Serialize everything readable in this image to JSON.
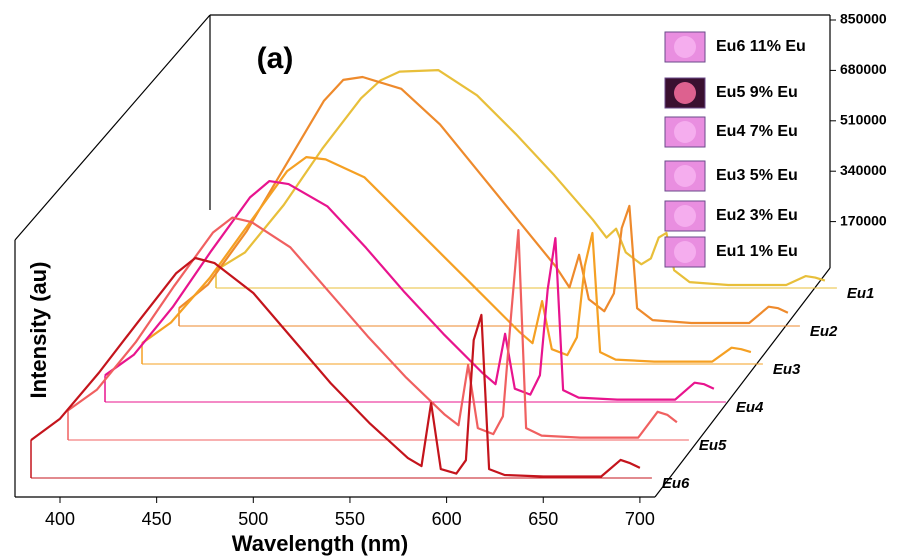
{
  "chart_data": {
    "type": "waterfall",
    "title": "(a)",
    "x_label": "Wavelength (nm)",
    "y_label": "Intensity (au)",
    "x": [
      385,
      400,
      420,
      440,
      460,
      470,
      480,
      500,
      520,
      540,
      560,
      580,
      587,
      592,
      597,
      605,
      610,
      614,
      618,
      622,
      630,
      650,
      680,
      690,
      695,
      700
    ],
    "series": [
      {
        "name": "Eu1",
        "color": "#e8bf3a",
        "values": [
          60000,
          120000,
          280000,
          470000,
          640000,
          700000,
          730000,
          735000,
          650000,
          520000,
          380000,
          230000,
          170000,
          200000,
          120000,
          80000,
          100000,
          170000,
          186000,
          60000,
          20000,
          10000,
          10000,
          40000,
          35000,
          25000
        ]
      },
      {
        "name": "Eu2",
        "color": "#ee8a2c",
        "values": [
          60000,
          140000,
          320000,
          540000,
          760000,
          830000,
          840000,
          800000,
          680000,
          520000,
          360000,
          200000,
          130000,
          240000,
          90000,
          50000,
          110000,
          330000,
          405000,
          60000,
          20000,
          10000,
          10000,
          65000,
          60000,
          45000
        ]
      },
      {
        "name": "Eu3",
        "color": "#f5a023",
        "values": [
          70000,
          140000,
          290000,
          470000,
          650000,
          698000,
          690000,
          630000,
          500000,
          370000,
          240000,
          110000,
          70000,
          212000,
          50000,
          30000,
          90000,
          330000,
          442000,
          40000,
          15000,
          8000,
          8000,
          55000,
          50000,
          40000
        ]
      },
      {
        "name": "Eu4",
        "color": "#e8148e",
        "values": [
          90000,
          160000,
          320000,
          510000,
          690000,
          745000,
          735000,
          660000,
          520000,
          370000,
          230000,
          100000,
          60000,
          230000,
          45000,
          25000,
          90000,
          380000,
          553000,
          40000,
          15000,
          8000,
          8000,
          65000,
          60000,
          45000
        ]
      },
      {
        "name": "Eu5",
        "color": "#f06060",
        "values": [
          100000,
          170000,
          330000,
          520000,
          700000,
          750000,
          735000,
          650000,
          500000,
          350000,
          210000,
          85000,
          50000,
          253000,
          40000,
          20000,
          80000,
          405000,
          708000,
          40000,
          15000,
          8000,
          8000,
          95000,
          85000,
          60000
        ]
      },
      {
        "name": "Eu6",
        "color": "#c4141c",
        "values": [
          128000,
          200000,
          354000,
          523000,
          690000,
          742000,
          725000,
          624000,
          472000,
          320000,
          186000,
          67000,
          40000,
          253000,
          30000,
          15000,
          60000,
          465000,
          550000,
          30000,
          10000,
          5000,
          5000,
          61000,
          50000,
          34000
        ]
      }
    ],
    "xlim": [
      385,
      700
    ],
    "xticks": [
      400,
      450,
      500,
      550,
      600,
      650,
      700
    ],
    "ylim": [
      0,
      850000
    ],
    "yticks": [
      170000,
      340000,
      510000,
      680000,
      850000
    ],
    "legend": [
      "Eu6 11% Eu",
      "Eu5 9% Eu",
      "Eu4 7% Eu",
      "Eu3 5% Eu",
      "Eu2 3% Eu",
      "Eu1 1% Eu"
    ]
  }
}
